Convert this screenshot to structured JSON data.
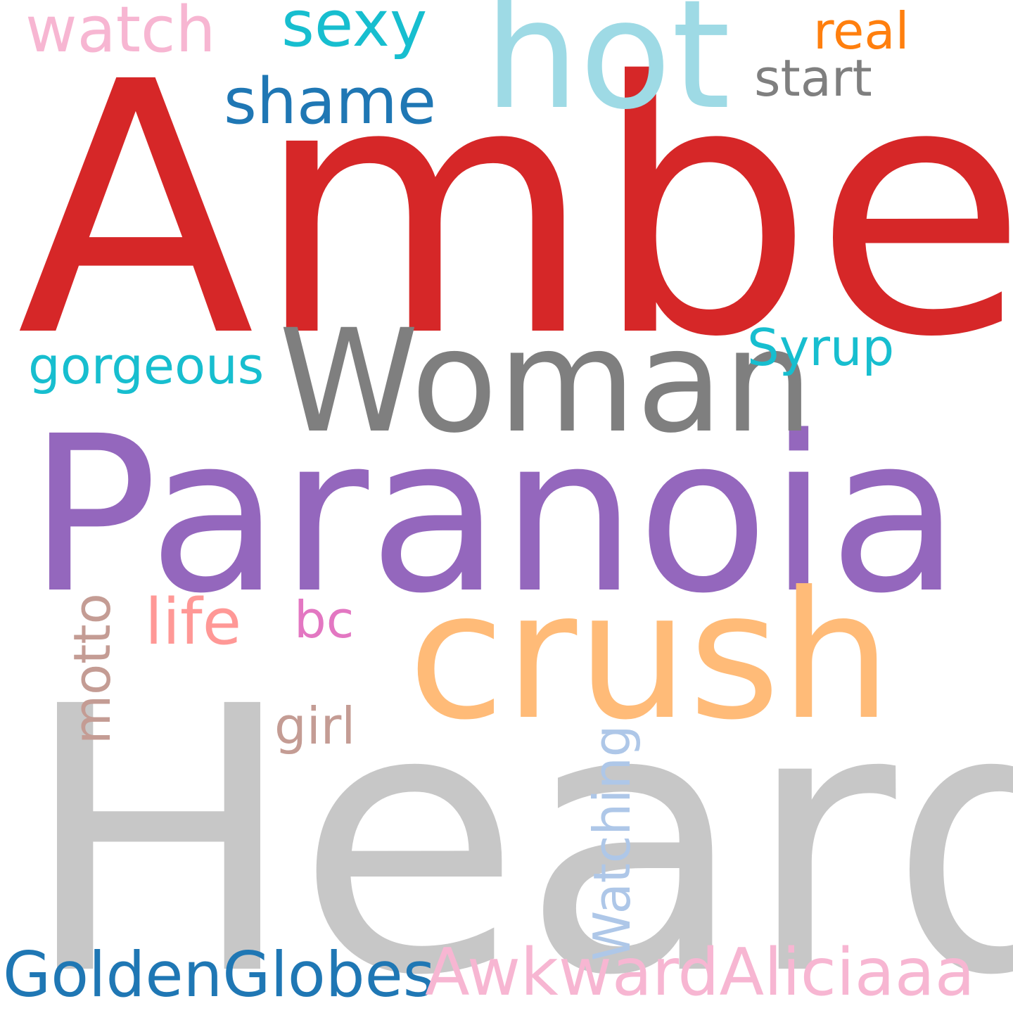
{
  "word_cloud": {
    "background": "#ffffff",
    "words": [
      {
        "key": "amber",
        "text": "Amber",
        "color": "#d62728"
      },
      {
        "key": "heard",
        "text": "Heard",
        "color": "#c7c7c7"
      },
      {
        "key": "paranoia",
        "text": "Paranoia",
        "color": "#9467bd"
      },
      {
        "key": "woman",
        "text": "Woman",
        "color": "#7f7f7f"
      },
      {
        "key": "crush",
        "text": "crush",
        "color": "#ffbb78"
      },
      {
        "key": "hot",
        "text": "hot",
        "color": "#9edae5"
      },
      {
        "key": "shame",
        "text": "shame",
        "color": "#1f77b4"
      },
      {
        "key": "sexy",
        "text": "sexy",
        "color": "#17becf"
      },
      {
        "key": "watch",
        "text": "watch",
        "color": "#f7b6d2"
      },
      {
        "key": "real",
        "text": "real",
        "color": "#ff7f0e"
      },
      {
        "key": "start",
        "text": "start",
        "color": "#7f7f7f"
      },
      {
        "key": "gorgeous",
        "text": "gorgeous",
        "color": "#17becf"
      },
      {
        "key": "syrup",
        "text": "Syrup",
        "color": "#17becf"
      },
      {
        "key": "motto",
        "text": "motto",
        "color": "#c49c94"
      },
      {
        "key": "life",
        "text": "life",
        "color": "#ff9896"
      },
      {
        "key": "bc",
        "text": "bc",
        "color": "#e377c2"
      },
      {
        "key": "girl",
        "text": "girl",
        "color": "#c49c94"
      },
      {
        "key": "watching",
        "text": "Watching",
        "color": "#aec7e8"
      },
      {
        "key": "goldenglobes",
        "text": "GoldenGlobes",
        "color": "#1f77b4"
      },
      {
        "key": "awkwardaliciaaa",
        "text": "AwkwardAliciaaa",
        "color": "#f7b6d2"
      }
    ]
  }
}
